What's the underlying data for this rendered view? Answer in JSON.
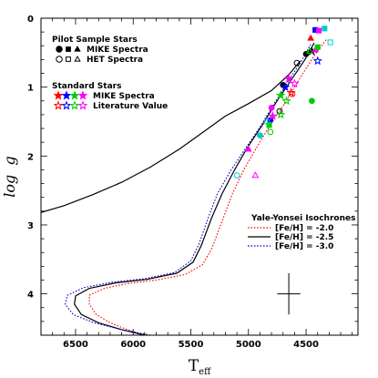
{
  "chart_data": {
    "type": "scatter",
    "xlabel": "T",
    "xlabel_sub": "eff",
    "ylabel": "log  g",
    "xlim": [
      6800,
      4050
    ],
    "ylim": [
      0,
      4.6
    ],
    "x_ticks": [
      6500,
      6000,
      5500,
      5000,
      4500
    ],
    "y_ticks": [
      0,
      1,
      2,
      3,
      4
    ],
    "x_minor_step": 100,
    "y_minor_step": 0.2,
    "grid": false,
    "legend_pilot": {
      "heading": "Pilot Sample Stars",
      "rows": [
        {
          "label": "MIKE Spectra",
          "filled": true
        },
        {
          "label": "HET Spectra",
          "filled": false
        }
      ]
    },
    "legend_standard": {
      "heading": "Standard Stars",
      "colors": [
        "#ff0000",
        "#0000ff",
        "#00cc00",
        "#ff00ff"
      ],
      "rows": [
        {
          "label": "MIKE Spectra",
          "filled": true
        },
        {
          "label": "Literature Value",
          "filled": false
        }
      ]
    },
    "legend_isochrones": {
      "heading": "Yale-Yonsei Isochrones",
      "rows": [
        {
          "label": "[Fe/H] = -2.0",
          "color": "#ff0000",
          "dash": "dotted"
        },
        {
          "label": "[Fe/H] = -2.5",
          "color": "#000000",
          "dash": "solid"
        },
        {
          "label": "[Fe/H] = -3.0",
          "color": "#0000cc",
          "dash": "dotted"
        }
      ]
    },
    "error_bar": {
      "x": 4650,
      "y": 4.0,
      "dx": 100,
      "dy": 0.3
    },
    "series": [
      {
        "name": "[Fe/H] = -2.0",
        "color": "#ff0000",
        "dash": "dotted",
        "points": [
          [
            5900,
            4.6
          ],
          [
            6050,
            4.52
          ],
          [
            6200,
            4.42
          ],
          [
            6320,
            4.3
          ],
          [
            6380,
            4.15
          ],
          [
            6380,
            4.02
          ],
          [
            6250,
            3.92
          ],
          [
            6050,
            3.85
          ],
          [
            5800,
            3.8
          ],
          [
            5550,
            3.72
          ],
          [
            5400,
            3.58
          ],
          [
            5320,
            3.35
          ],
          [
            5230,
            2.95
          ],
          [
            5140,
            2.55
          ],
          [
            5040,
            2.2
          ],
          [
            4920,
            1.85
          ],
          [
            4800,
            1.52
          ],
          [
            4670,
            1.2
          ],
          [
            4550,
            0.86
          ],
          [
            4420,
            0.52
          ],
          [
            4320,
            0.3
          ]
        ]
      },
      {
        "name": "[Fe/H] = -2.5",
        "color": "#000000",
        "dash": "solid",
        "points": [
          [
            5900,
            4.6
          ],
          [
            6100,
            4.52
          ],
          [
            6300,
            4.42
          ],
          [
            6450,
            4.3
          ],
          [
            6510,
            4.15
          ],
          [
            6500,
            4.03
          ],
          [
            6380,
            3.92
          ],
          [
            6150,
            3.84
          ],
          [
            5880,
            3.79
          ],
          [
            5620,
            3.7
          ],
          [
            5480,
            3.54
          ],
          [
            5410,
            3.3
          ],
          [
            5320,
            2.9
          ],
          [
            5230,
            2.55
          ],
          [
            5120,
            2.2
          ],
          [
            5010,
            1.88
          ],
          [
            4880,
            1.55
          ],
          [
            4760,
            1.22
          ],
          [
            4630,
            0.9
          ],
          [
            4510,
            0.6
          ],
          [
            4430,
            0.36
          ]
        ]
      },
      {
        "name": "[Fe/H] = -3.0",
        "color": "#0000cc",
        "dash": "dotted",
        "points": [
          [
            5850,
            4.6
          ],
          [
            6100,
            4.52
          ],
          [
            6340,
            4.42
          ],
          [
            6520,
            4.3
          ],
          [
            6590,
            4.15
          ],
          [
            6570,
            4.02
          ],
          [
            6430,
            3.91
          ],
          [
            6180,
            3.83
          ],
          [
            5900,
            3.78
          ],
          [
            5640,
            3.69
          ],
          [
            5500,
            3.52
          ],
          [
            5430,
            3.28
          ],
          [
            5350,
            2.9
          ],
          [
            5270,
            2.55
          ],
          [
            5150,
            2.2
          ],
          [
            5030,
            1.9
          ],
          [
            4900,
            1.58
          ],
          [
            4780,
            1.25
          ],
          [
            4660,
            0.93
          ],
          [
            4540,
            0.62
          ],
          [
            4460,
            0.38
          ]
        ]
      },
      {
        "name": "AGB",
        "color": "#000000",
        "dash": "solid",
        "points": [
          [
            6800,
            2.82
          ],
          [
            6600,
            2.72
          ],
          [
            6350,
            2.56
          ],
          [
            6100,
            2.38
          ],
          [
            5850,
            2.16
          ],
          [
            5600,
            1.9
          ],
          [
            5400,
            1.66
          ],
          [
            5200,
            1.42
          ],
          [
            5000,
            1.24
          ],
          [
            4800,
            1.05
          ],
          [
            4650,
            0.82
          ],
          [
            4550,
            0.62
          ]
        ]
      }
    ],
    "stars": [
      {
        "x": 4700,
        "y": 0.97,
        "color": "#000000",
        "shape": "circle",
        "filled": true
      },
      {
        "x": 4500,
        "y": 0.52,
        "color": "#000000",
        "shape": "circle",
        "filled": true
      },
      {
        "x": 4450,
        "y": 0.48,
        "color": "#000000",
        "shape": "star",
        "filled": true
      },
      {
        "x": 4580,
        "y": 0.65,
        "color": "#000000",
        "shape": "circle",
        "filled": false
      },
      {
        "x": 4730,
        "y": 1.35,
        "color": "#000000",
        "shape": "circle",
        "filled": false
      },
      {
        "x": 4620,
        "y": 1.1,
        "color": "#ff0000",
        "shape": "circle",
        "filled": false
      },
      {
        "x": 4460,
        "y": 0.29,
        "color": "#ff0000",
        "shape": "triangle",
        "filled": true
      },
      {
        "x": 4420,
        "y": 0.17,
        "color": "#0000ff",
        "shape": "square",
        "filled": true
      },
      {
        "x": 4390,
        "y": 0.18,
        "color": "#ff00ff",
        "shape": "square",
        "filled": true
      },
      {
        "x": 4340,
        "y": 0.15,
        "color": "#00cccc",
        "shape": "square",
        "filled": true
      },
      {
        "x": 4290,
        "y": 0.35,
        "color": "#00cccc",
        "shape": "square",
        "filled": false
      },
      {
        "x": 4420,
        "y": 0.46,
        "color": "#ff00ff",
        "shape": "triangle",
        "filled": true
      },
      {
        "x": 4400,
        "y": 0.42,
        "color": "#00cc00",
        "shape": "square",
        "filled": true
      },
      {
        "x": 4470,
        "y": 0.48,
        "color": "#00cc00",
        "shape": "triangle",
        "filled": false
      },
      {
        "x": 4400,
        "y": 0.62,
        "color": "#0000ff",
        "shape": "star",
        "filled": false
      },
      {
        "x": 4680,
        "y": 1.0,
        "color": "#0000ff",
        "shape": "star",
        "filled": true
      },
      {
        "x": 4650,
        "y": 0.88,
        "color": "#ff00ff",
        "shape": "star",
        "filled": true
      },
      {
        "x": 4720,
        "y": 1.12,
        "color": "#00cc00",
        "shape": "star",
        "filled": true
      },
      {
        "x": 4630,
        "y": 1.08,
        "color": "#ff0000",
        "shape": "star",
        "filled": false
      },
      {
        "x": 4600,
        "y": 0.95,
        "color": "#ff00ff",
        "shape": "star",
        "filled": false
      },
      {
        "x": 4670,
        "y": 1.2,
        "color": "#00cc00",
        "shape": "star",
        "filled": false
      },
      {
        "x": 4800,
        "y": 1.3,
        "color": "#ff00ff",
        "shape": "circle",
        "filled": true
      },
      {
        "x": 4810,
        "y": 1.48,
        "color": "#0000ff",
        "shape": "circle",
        "filled": true
      },
      {
        "x": 4820,
        "y": 1.55,
        "color": "#00cc00",
        "shape": "square",
        "filled": true
      },
      {
        "x": 4840,
        "y": 1.5,
        "color": "#00cccc",
        "shape": "circle",
        "filled": false
      },
      {
        "x": 4900,
        "y": 1.7,
        "color": "#00cccc",
        "shape": "circle",
        "filled": true
      },
      {
        "x": 4810,
        "y": 1.65,
        "color": "#00cc00",
        "shape": "circle",
        "filled": false
      },
      {
        "x": 4720,
        "y": 1.4,
        "color": "#00cc00",
        "shape": "star",
        "filled": false
      },
      {
        "x": 4790,
        "y": 1.42,
        "color": "#ff00ff",
        "shape": "star",
        "filled": true
      },
      {
        "x": 5000,
        "y": 1.9,
        "color": "#ff00ff",
        "shape": "triangle",
        "filled": true
      },
      {
        "x": 4940,
        "y": 2.28,
        "color": "#ff00ff",
        "shape": "triangle",
        "filled": false
      },
      {
        "x": 5100,
        "y": 2.28,
        "color": "#00cccc",
        "shape": "circle",
        "filled": false
      },
      {
        "x": 4450,
        "y": 1.2,
        "color": "#00cc00",
        "shape": "circle",
        "filled": true
      }
    ]
  }
}
